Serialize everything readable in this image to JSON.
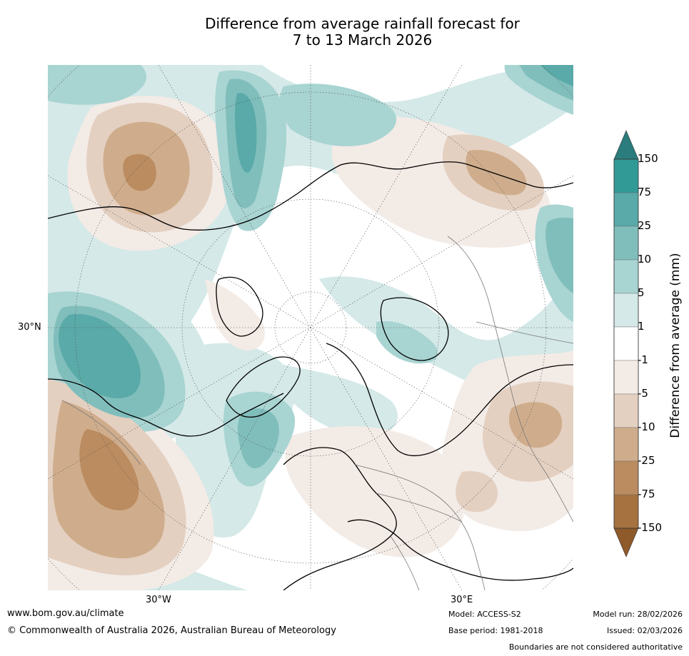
{
  "title": {
    "line1": "Difference from average rainfall forecast for",
    "line2": "7 to 13 March 2026"
  },
  "map": {
    "lat_label": "30°N",
    "lon_labels": {
      "west": "30°W",
      "east": "30°E"
    }
  },
  "colorbar": {
    "title": "Difference from average (mm)",
    "labels": [
      "150",
      "75",
      "25",
      "10",
      "5",
      "1",
      "-1",
      "-5",
      "-10",
      "-25",
      "-75",
      "-150"
    ],
    "colors": [
      "#2a7d7c",
      "#319a96",
      "#59aaa8",
      "#80bebc",
      "#a8d4d2",
      "#d4e9e8",
      "#ffffff",
      "#f3ebe6",
      "#e4d0c1",
      "#cfad8c",
      "#bb8c60",
      "#a6723f",
      "#8e5a2a"
    ]
  },
  "footer": {
    "website": "www.bom.gov.au/climate",
    "copyright": "© Commonwealth of Australia 2026, Australian Bureau of Meteorology",
    "model": "Model: ACCESS-S2",
    "base_period": "Base period: 1981-2018",
    "model_run": "Model run: 28/02/2026",
    "issued": "Issued: 02/03/2026",
    "disclaimer": "Boundaries are not considered authoritative"
  }
}
